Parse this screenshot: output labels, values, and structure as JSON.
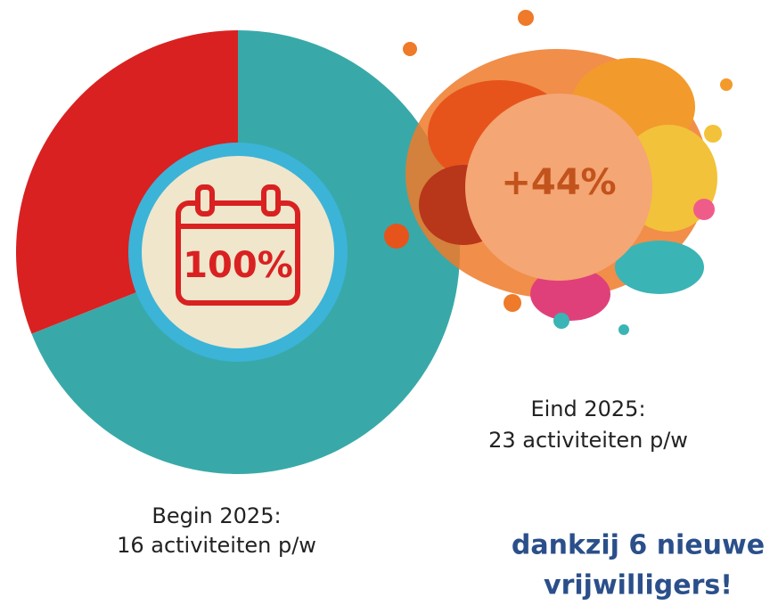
{
  "chart_data": {
    "type": "pie",
    "values": [
      69,
      31
    ],
    "colors": [
      "#38a9a8",
      "#d92121"
    ],
    "center_label": "100%",
    "bubble_label": "+44%",
    "start_caption": [
      "Begin 2025:",
      "16 activiteiten p/w"
    ],
    "end_caption": [
      "Eind 2025:",
      "23 activiteiten p/w"
    ],
    "footer": [
      "dankzij 6 nieuwe",
      "vrijwilligers!"
    ]
  }
}
